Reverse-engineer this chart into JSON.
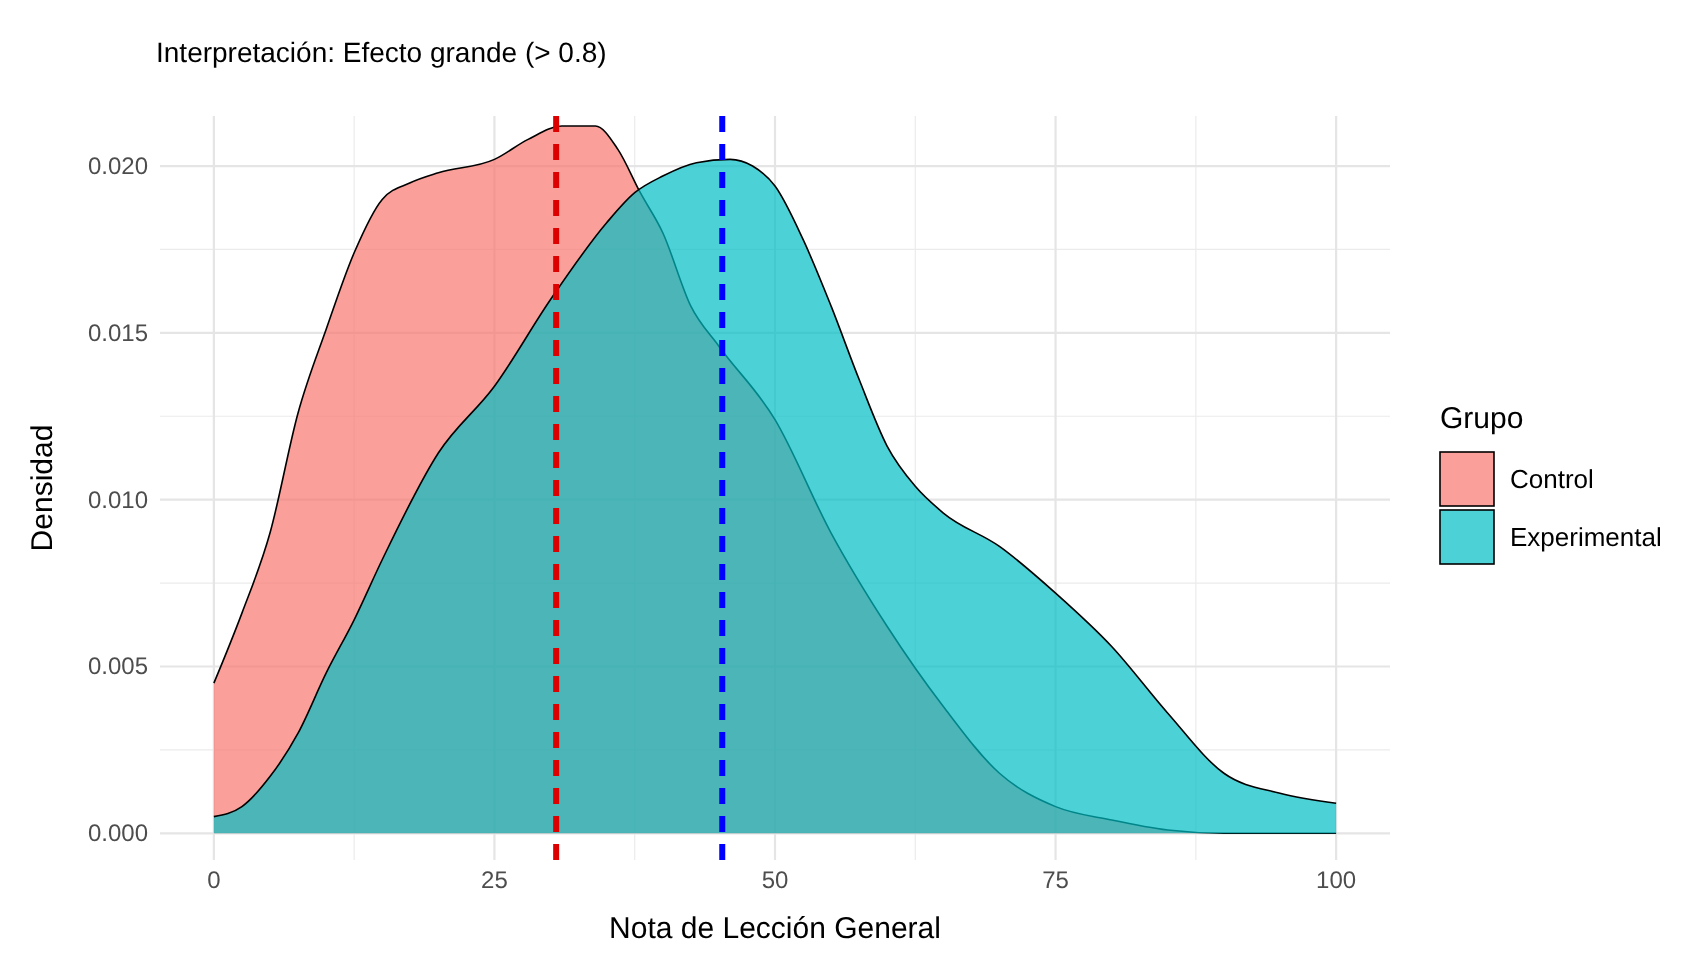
{
  "chart_data": {
    "type": "area",
    "title": "Interpretación: Efecto grande (> 0.8)",
    "xlabel": "Nota de Lección General",
    "ylabel": "Densidad",
    "legend_title": "Grupo",
    "legend": "right",
    "grid": true,
    "xlim": [
      -4.8,
      104.8
    ],
    "xticks": [
      0,
      25,
      50,
      75,
      100
    ],
    "ylim": [
      -0.0008,
      0.0215
    ],
    "yticks": [
      {
        "value": 0,
        "label": "0.000"
      },
      {
        "value": 0.005,
        "label": "0.005"
      },
      {
        "value": 0.01,
        "label": "0.010"
      },
      {
        "value": 0.015,
        "label": "0.015"
      },
      {
        "value": 0.02,
        "label": "0.020"
      }
    ],
    "series": [
      {
        "name": "Control",
        "color": "#f8766d",
        "x": [
          0,
          2.5,
          5,
          7.5,
          10,
          12.5,
          15,
          17.5,
          20,
          25,
          28,
          31,
          34,
          36,
          38,
          40,
          42.5,
          45,
          50,
          55,
          60,
          65,
          70,
          75,
          80,
          85,
          90,
          100
        ],
        "values": [
          0.0045,
          0.0066,
          0.009,
          0.0126,
          0.0151,
          0.0174,
          0.019,
          0.0195,
          0.0198,
          0.0202,
          0.0208,
          0.0212,
          0.0212,
          0.0205,
          0.0192,
          0.018,
          0.0158,
          0.0146,
          0.0124,
          0.009,
          0.0062,
          0.0038,
          0.0018,
          0.0008,
          0.0004,
          0.0001,
          0,
          0
        ]
      },
      {
        "name": "Experimental",
        "color": "#00bfc4",
        "x": [
          0,
          2.5,
          5,
          7.5,
          10,
          12.5,
          15,
          20,
          25,
          30,
          35,
          37.5,
          40,
          43,
          46,
          48,
          50,
          52.5,
          55,
          57.5,
          60,
          62.5,
          65,
          70,
          75,
          80,
          85,
          90,
          95,
          100
        ],
        "values": [
          0.0005,
          0.0008,
          0.0017,
          0.003,
          0.0048,
          0.0064,
          0.0082,
          0.0114,
          0.0134,
          0.016,
          0.0183,
          0.0192,
          0.0197,
          0.0201,
          0.0202,
          0.02,
          0.0194,
          0.0178,
          0.0158,
          0.0136,
          0.0116,
          0.0104,
          0.0096,
          0.0086,
          0.0072,
          0.0056,
          0.0036,
          0.0018,
          0.0012,
          0.0009
        ]
      }
    ],
    "ref_lines": [
      {
        "axis": "x",
        "value": 30.5,
        "color": "#dd0000",
        "line_style": "dashed"
      },
      {
        "axis": "x",
        "value": 45.3,
        "color": "#0000ff",
        "line_style": "dashed"
      }
    ]
  }
}
